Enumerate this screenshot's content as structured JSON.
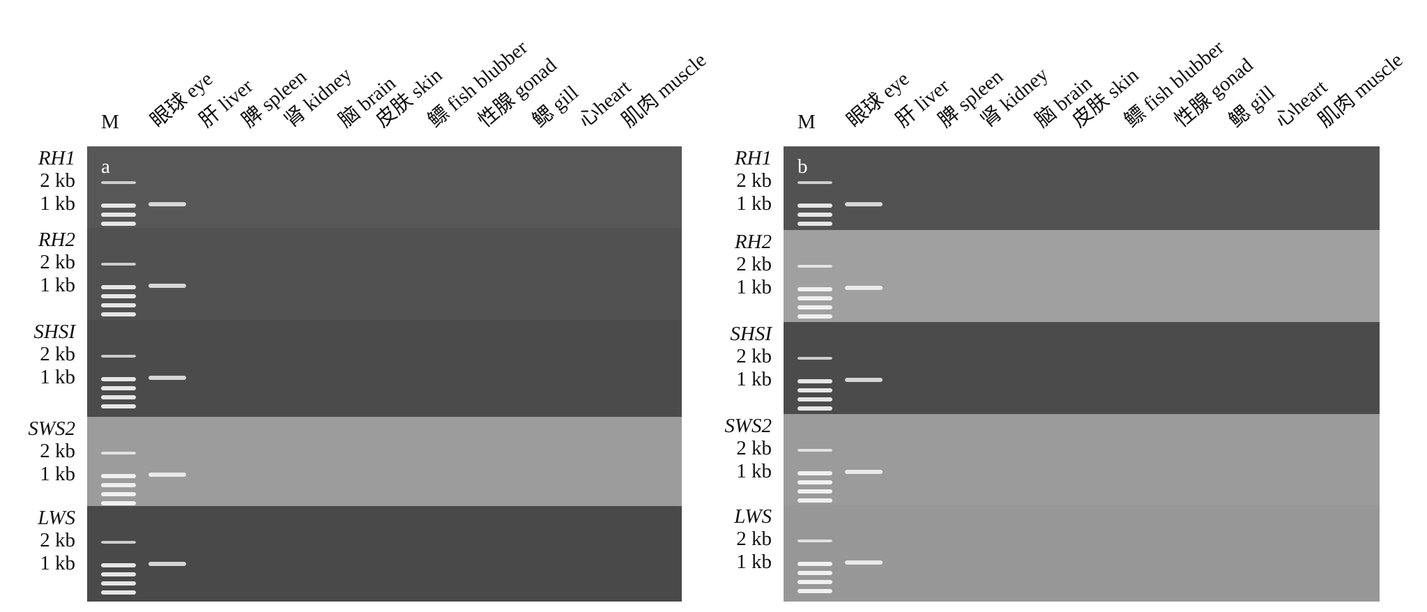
{
  "panels": [
    {
      "label": "a",
      "marker": "M",
      "lanes": [
        "眼球 eye",
        "肝 liver",
        "脾 spleen",
        "肾 kidney",
        "脑 brain",
        "皮肤 skin",
        "鳔 fish blubber",
        "性腺 gonad",
        "鳃 gill",
        "心heart",
        "肌肉 muscle"
      ],
      "rows": [
        {
          "gene": "RH1",
          "ladder": [
            "2 kb",
            "1 kb"
          ]
        },
        {
          "gene": "RH2",
          "ladder": [
            "2 kb",
            "1 kb"
          ]
        },
        {
          "gene": "SHSI",
          "ladder": [
            "2 kb",
            "1 kb"
          ]
        },
        {
          "gene": "SWS2",
          "ladder": [
            "2 kb",
            "1 kb"
          ]
        },
        {
          "gene": "LWS",
          "ladder": [
            "2 kb",
            "1 kb"
          ]
        }
      ]
    },
    {
      "label": "b",
      "marker": "M",
      "lanes": [
        "眼球 eye",
        "肝 liver",
        "脾 spleen",
        "肾 kidney",
        "脑 brain",
        "皮肤 skin",
        "鳔 fish blubber",
        "性腺 gonad",
        "鳃 gill",
        "心heart",
        "肌肉 muscle"
      ],
      "rows": [
        {
          "gene": "RH1",
          "ladder": [
            "2 kb",
            "1 kb"
          ]
        },
        {
          "gene": "RH2",
          "ladder": [
            "2 kb",
            "1 kb"
          ]
        },
        {
          "gene": "SHSI",
          "ladder": [
            "2 kb",
            "1 kb"
          ]
        },
        {
          "gene": "SWS2",
          "ladder": [
            "2 kb",
            "1 kb"
          ]
        },
        {
          "gene": "LWS",
          "ladder": [
            "2 kb",
            "1 kb"
          ]
        }
      ]
    }
  ]
}
